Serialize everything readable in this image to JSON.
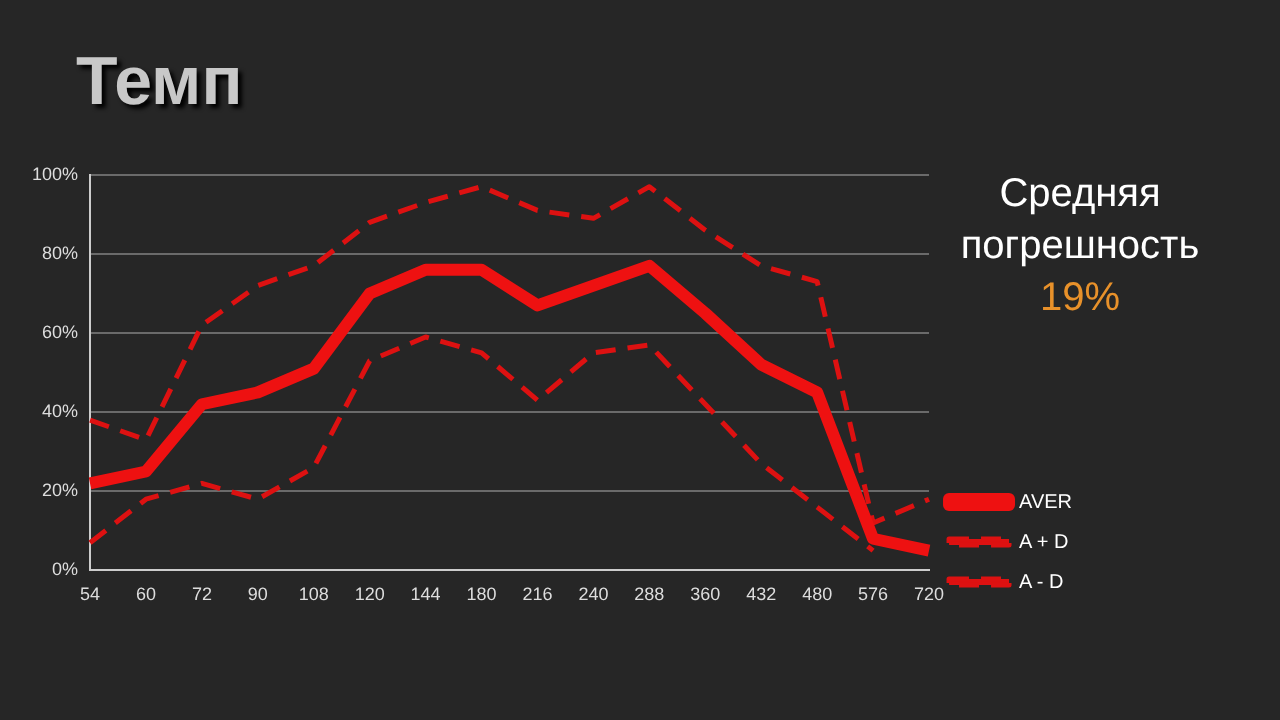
{
  "chart_data": {
    "type": "line",
    "title": "Темп",
    "categories": [
      "54",
      "60",
      "72",
      "90",
      "108",
      "120",
      "144",
      "180",
      "216",
      "240",
      "288",
      "360",
      "432",
      "480",
      "576",
      "720"
    ],
    "series": [
      {
        "name": "AVER",
        "color": "#ee1111",
        "line_style": "solid",
        "values": [
          22,
          25,
          42,
          45,
          51,
          70,
          76,
          76,
          67,
          72,
          77,
          65,
          52,
          45,
          8,
          5
        ]
      },
      {
        "name": "A + D",
        "color": "#dd1111",
        "line_style": "dashed",
        "values": [
          38,
          33,
          62,
          72,
          77,
          88,
          93,
          97,
          91,
          89,
          97,
          86,
          77,
          73,
          12,
          18
        ]
      },
      {
        "name": "A - D",
        "color": "#dd1111",
        "line_style": "dashed",
        "values": [
          7,
          18,
          22,
          18,
          26,
          53,
          59,
          55,
          43,
          55,
          57,
          42,
          27,
          16,
          5,
          null
        ]
      }
    ],
    "ylim": [
      0,
      100
    ],
    "yticks": [
      {
        "value": 0,
        "label": "0%"
      },
      {
        "value": 20,
        "label": "20%"
      },
      {
        "value": 40,
        "label": "40%"
      },
      {
        "value": 60,
        "label": "60%"
      },
      {
        "value": 80,
        "label": "80%"
      },
      {
        "value": 100,
        "label": "100%"
      }
    ],
    "grid": "y",
    "legend": "right",
    "marker": "none",
    "annotations": [
      "Средняя погрешность",
      "19%"
    ]
  }
}
